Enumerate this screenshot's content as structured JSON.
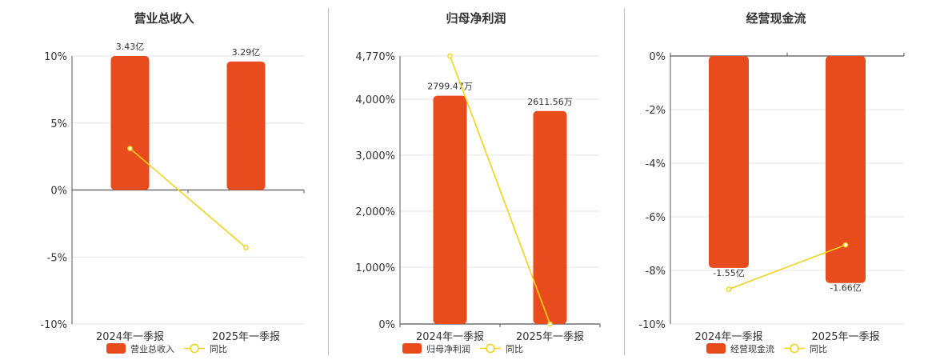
{
  "colors": {
    "bar": "#e84c1c",
    "line": "#f2d21b",
    "grid": "#e6e6e6",
    "axis": "#555555"
  },
  "chart_data": [
    {
      "type": "bar",
      "title": "营业总收入",
      "categories": [
        "2024年一季报",
        "2025年一季报"
      ],
      "series": [
        {
          "name": "营业总收入",
          "type": "bar",
          "values": [
            3.43,
            3.29
          ],
          "labels": [
            "3.43亿",
            "3.29亿"
          ]
        },
        {
          "name": "同比",
          "type": "line",
          "values": [
            3.1,
            -4.3
          ]
        }
      ],
      "bar_max": 3.43,
      "yticks": [
        "10%",
        "5%",
        "0%",
        "-5%",
        "-10%"
      ],
      "ylim": [
        -10,
        10
      ],
      "grid": true,
      "legend": "bottom"
    },
    {
      "type": "bar",
      "title": "归母净利润",
      "categories": [
        "2024年一季报",
        "2025年一季报"
      ],
      "series": [
        {
          "name": "归母净利润",
          "type": "bar",
          "values": [
            2799.47,
            2611.56
          ],
          "labels": [
            "2799.47万",
            "2611.56万"
          ]
        },
        {
          "name": "同比",
          "type": "line",
          "values": [
            4770,
            0
          ]
        }
      ],
      "bar_max": 3286,
      "yticks": [
        "4,770%",
        "4,000%",
        "3,000%",
        "2,000%",
        "1,000%",
        "0%"
      ],
      "ylim": [
        0,
        4770
      ],
      "grid": true,
      "legend": "bottom"
    },
    {
      "type": "bar",
      "title": "经营现金流",
      "categories": [
        "2024年一季报",
        "2025年一季报"
      ],
      "series": [
        {
          "name": "经营现金流",
          "type": "bar",
          "values": [
            -1.55,
            -1.66
          ],
          "labels": [
            "-1.55亿",
            "-1.66亿"
          ]
        },
        {
          "name": "同比",
          "type": "line",
          "values": [
            -8.7,
            -7.05
          ]
        }
      ],
      "bar_max": 1.96,
      "yticks": [
        "0%",
        "-2%",
        "-4%",
        "-6%",
        "-8%",
        "-10%"
      ],
      "ylim": [
        -10,
        0
      ],
      "grid": true,
      "legend": "bottom"
    }
  ]
}
